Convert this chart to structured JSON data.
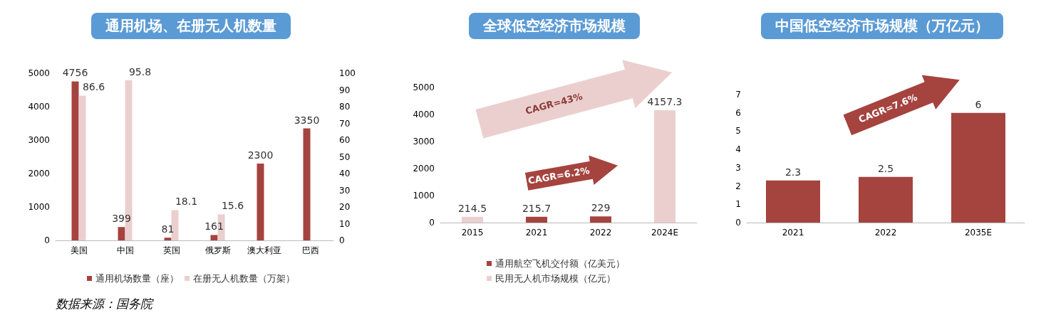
{
  "chart_data": [
    {
      "type": "bar",
      "title": "通用机场、在册无人机数量",
      "categories": [
        "美国",
        "中国",
        "英国",
        "俄罗斯",
        "澳大利亚",
        "巴西"
      ],
      "series": [
        {
          "name": "通用机场数量（座）",
          "color": "#a5433f",
          "values": [
            4756,
            399,
            81,
            161,
            2300,
            3350
          ]
        },
        {
          "name": "在册无人机数量（万架）",
          "color": "#ebcfcf",
          "values": [
            86.6,
            95.8,
            18.1,
            15.6,
            null,
            null
          ],
          "axis": "y2"
        }
      ],
      "ylim": [
        0,
        5000
      ],
      "yticks": [
        0,
        1000,
        2000,
        3000,
        4000,
        5000
      ],
      "y2lim": [
        0,
        100
      ],
      "y2ticks": [
        0,
        10,
        20,
        30,
        40,
        50,
        60,
        70,
        80,
        90,
        100
      ],
      "data_labels": true,
      "legend": "bottom",
      "annotations": [
        "数据来源：国务院"
      ]
    },
    {
      "type": "bar",
      "title": "全球低空经济市场规模",
      "categories": [
        "2015",
        "2021",
        "2022",
        "2024E"
      ],
      "series": [
        {
          "name": "通用航空飞机交付额（亿美元）",
          "color": "#a5433f",
          "values": [
            null,
            215.7,
            229,
            null
          ]
        },
        {
          "name": "民用无人机市场规模（亿元）",
          "color": "#ebcfcf",
          "values": [
            214.5,
            null,
            null,
            4157.3
          ]
        }
      ],
      "ylim": [
        0,
        5000
      ],
      "yticks": [
        0,
        1000,
        2000,
        3000,
        4000,
        5000
      ],
      "data_labels": true,
      "legend": "bottom",
      "annotations": [
        "CAGR=43%",
        "CAGR=6.2%"
      ]
    },
    {
      "type": "bar",
      "title": "中国低空经济市场规模（万亿元）",
      "categories": [
        "2021",
        "2022",
        "2035E"
      ],
      "series": [
        {
          "color": "#a5433f",
          "values": [
            2.3,
            2.5,
            6
          ]
        }
      ],
      "ylim": [
        0,
        7
      ],
      "yticks": [
        0,
        1,
        2,
        3,
        4,
        5,
        6,
        7
      ],
      "data_labels": true,
      "annotations": [
        "CAGR=7.6%"
      ]
    }
  ]
}
